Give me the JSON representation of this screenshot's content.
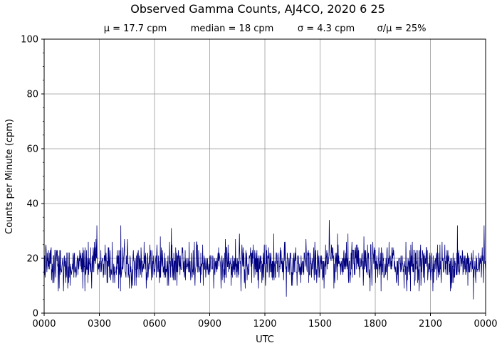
{
  "chart_data": {
    "type": "line",
    "title": "Observed Gamma Counts, AJ4CO, 2020 6 25",
    "stats": [
      "μ = 17.7 cpm",
      "median = 18 cpm",
      "σ = 4.3 cpm",
      "σ/μ = 25%"
    ],
    "xlabel": "UTC",
    "ylabel": "Counts per Minute (cpm)",
    "x_ticks": [
      "0000",
      "0300",
      "0600",
      "0900",
      "1200",
      "1500",
      "1800",
      "2100",
      "0000"
    ],
    "y_ticks": [
      "0",
      "20",
      "40",
      "60",
      "80",
      "100"
    ],
    "ylim": [
      0,
      100
    ],
    "xlim_minutes": [
      0,
      1440
    ],
    "grid": true,
    "series": [
      {
        "color": "#000080",
        "sample_interval_minutes": 1,
        "mean": 17.7,
        "sd": 4.3,
        "min": 5,
        "max": 34,
        "notable_points": [
          {
            "minute": 930,
            "value": 34
          },
          {
            "minute": 1348,
            "value": 32
          },
          {
            "minute": 250,
            "value": 32
          },
          {
            "minute": 1435,
            "value": 32
          },
          {
            "minute": 415,
            "value": 31
          },
          {
            "minute": 172,
            "value": 32
          },
          {
            "minute": 790,
            "value": 6
          },
          {
            "minute": 1400,
            "value": 5
          }
        ]
      }
    ]
  }
}
